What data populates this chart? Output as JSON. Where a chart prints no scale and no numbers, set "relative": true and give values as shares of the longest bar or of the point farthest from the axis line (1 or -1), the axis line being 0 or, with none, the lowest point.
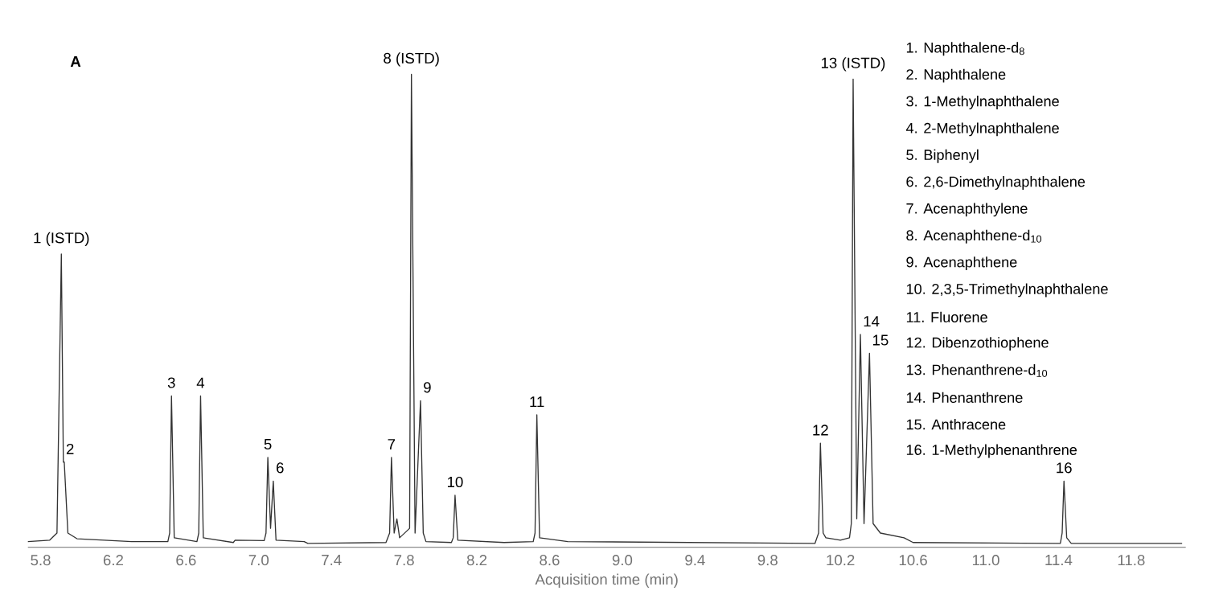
{
  "chart_data": {
    "type": "line",
    "title": "A",
    "xlabel": "Acquisition time (min)",
    "relative": true,
    "color": "#333333",
    "xlim": [
      5.73,
      12.1
    ],
    "xticks": [
      5.8,
      6.2,
      6.6,
      {
        "value": 7,
        "label": "7.0"
      },
      7.4,
      7.8,
      8.2,
      8.6,
      {
        "value": 9,
        "label": "9.0"
      },
      9.4,
      9.8,
      10.2,
      10.6,
      {
        "value": 11,
        "label": "11.0"
      },
      11.4,
      11.8
    ],
    "grid": false,
    "marker": "none",
    "line_style": "solid",
    "x": [
      5.73,
      5.85,
      5.89,
      5.914,
      5.925,
      5.93,
      5.95,
      6.0,
      6.3,
      6.5,
      6.51,
      6.52,
      6.535,
      6.66,
      6.67,
      6.68,
      6.695,
      6.86,
      6.87,
      7.03,
      7.04,
      7.05,
      7.065,
      7.08,
      7.095,
      7.25,
      7.27,
      7.7,
      7.72,
      7.73,
      7.745,
      7.76,
      7.775,
      7.83,
      7.84,
      7.86,
      7.89,
      7.905,
      7.92,
      8.06,
      8.07,
      8.08,
      8.095,
      8.35,
      8.51,
      8.52,
      8.53,
      8.545,
      8.7,
      10.06,
      10.08,
      10.09,
      10.105,
      10.12,
      10.2,
      10.25,
      10.26,
      10.27,
      10.29,
      10.31,
      10.33,
      10.36,
      10.38,
      10.42,
      10.55,
      10.6,
      11.41,
      11.42,
      11.43,
      11.445,
      11.47,
      12.08
    ],
    "values": [
      0.012,
      0.015,
      0.03,
      0.62,
      0.18,
      0.18,
      0.03,
      0.018,
      0.012,
      0.012,
      0.03,
      0.32,
      0.02,
      0.012,
      0.03,
      0.32,
      0.02,
      0.01,
      0.015,
      0.014,
      0.03,
      0.19,
      0.04,
      0.14,
      0.015,
      0.012,
      0.008,
      0.01,
      0.03,
      0.19,
      0.03,
      0.06,
      0.02,
      0.04,
      1.0,
      0.03,
      0.31,
      0.03,
      0.012,
      0.01,
      0.02,
      0.11,
      0.015,
      0.01,
      0.012,
      0.03,
      0.28,
      0.02,
      0.012,
      0.008,
      0.03,
      0.22,
      0.03,
      0.02,
      0.015,
      0.02,
      0.05,
      0.99,
      0.06,
      0.45,
      0.05,
      0.41,
      0.05,
      0.03,
      0.02,
      0.01,
      0.008,
      0.03,
      0.14,
      0.02,
      0.008,
      0.008
    ],
    "annotations": [
      {
        "text": "1 (ISTD)",
        "x": 5.914,
        "y": 0.62
      },
      {
        "text": "2",
        "x": 5.925,
        "y": 0.18
      },
      {
        "text": "3",
        "x": 6.52,
        "y": 0.32
      },
      {
        "text": "4",
        "x": 6.68,
        "y": 0.32
      },
      {
        "text": "5",
        "x": 7.05,
        "y": 0.19
      },
      {
        "text": "6",
        "x": 7.08,
        "y": 0.14
      },
      {
        "text": "7",
        "x": 7.73,
        "y": 0.19
      },
      {
        "text": "8 (ISTD)",
        "x": 7.84,
        "y": 1.0
      },
      {
        "text": "9",
        "x": 7.89,
        "y": 0.31
      },
      {
        "text": "10",
        "x": 8.08,
        "y": 0.11
      },
      {
        "text": "11",
        "x": 8.53,
        "y": 0.28
      },
      {
        "text": "12",
        "x": 10.09,
        "y": 0.22
      },
      {
        "text": "13 (ISTD)",
        "x": 10.27,
        "y": 0.99
      },
      {
        "text": "14",
        "x": 10.31,
        "y": 0.45
      },
      {
        "text": "15",
        "x": 10.36,
        "y": 0.41
      },
      {
        "text": "16",
        "x": 11.43,
        "y": 0.14
      },
      "1. Naphthalene-d$_{8}$",
      "2. Naphthalene",
      "3. 1-Methylnaphthalene",
      "4. 2-Methylnaphthalene",
      "5. Biphenyl",
      "6. 2,6-Dimethylnaphthalene",
      "7. Acenaphthylene",
      "8.  Acenaphthene-d$_{10}$",
      "9. Acenaphthene",
      "10. 2,3,5-Trimethylnaphthalene",
      "11. Fluorene",
      "12. Dibenzothiophene",
      "13. Phenanthrene-d$_{10}$",
      "14. Phenanthrene",
      "15. Anthracene",
      "16. 1-Methylphenanthrene"
    ]
  }
}
